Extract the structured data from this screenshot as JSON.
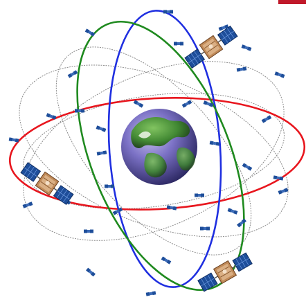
{
  "diagram": {
    "kind": "satellite-constellation",
    "text": "",
    "orbits": [
      {
        "id": "red",
        "color": "#e8161e"
      },
      {
        "id": "blue",
        "color": "#1f2fe0"
      },
      {
        "id": "green",
        "color": "#1f8a1f"
      },
      {
        "id": "gray-1",
        "color": "#8a8a8a"
      },
      {
        "id": "gray-2",
        "color": "#8a8a8a"
      },
      {
        "id": "gray-3",
        "color": "#8a8a8a"
      },
      {
        "id": "gray-4",
        "color": "#8a8a8a"
      }
    ],
    "large_satellite_count": 3,
    "small_satellite_count": 34,
    "colors": {
      "globe_land": "#3f8a2c",
      "globe_ocean": "#6a62b8",
      "satellite_panel": "#1e4e9a",
      "satellite_body": "#c08a58",
      "corner_mark": "#c0192a"
    }
  }
}
